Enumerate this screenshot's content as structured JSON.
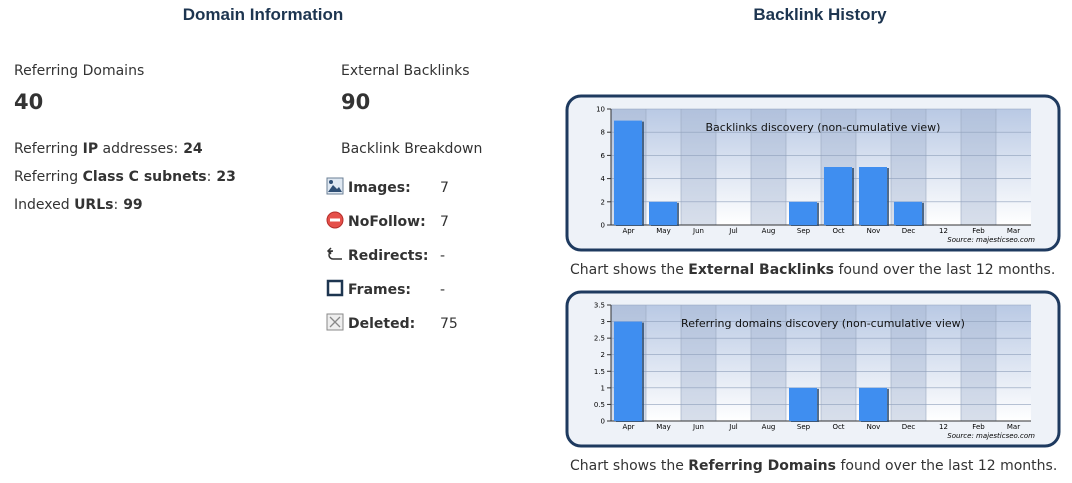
{
  "domain_info": {
    "title": "Domain Information",
    "referring_domains": {
      "label": "Referring Domains",
      "value": 40
    },
    "external_backlinks": {
      "label": "External Backlinks",
      "value": 90
    },
    "stats": [
      {
        "prefix": "Referring ",
        "bold": "IP",
        "suffix": " addresses:",
        "value": 24
      },
      {
        "prefix": "Referring ",
        "bold": "Class C subnets",
        "suffix": ":",
        "value": 23
      },
      {
        "prefix": "Indexed ",
        "bold": "URLs",
        "suffix": ":",
        "value": 99
      }
    ],
    "breakdown": {
      "title": "Backlink Breakdown",
      "items": [
        {
          "label": "Images:",
          "value": 7
        },
        {
          "label": "NoFollow:",
          "value": 7
        },
        {
          "label": "Redirects:",
          "value": "-"
        },
        {
          "label": "Frames:",
          "value": "-"
        },
        {
          "label": "Deleted:",
          "value": 75
        }
      ]
    }
  },
  "backlink_history": {
    "title": "Backlink History",
    "charts": [
      {
        "type": "bar",
        "title": "Backlinks discovery (non-cumulative view)",
        "source": "Source: majesticseo.com",
        "categories": [
          "Apr",
          "May",
          "Jun",
          "Jul",
          "Aug",
          "Sep",
          "Oct",
          "Nov",
          "Dec",
          "12",
          "Feb",
          "Mar"
        ],
        "values": [
          9,
          2,
          0,
          0,
          0,
          2,
          5,
          5,
          2,
          0,
          0,
          0
        ],
        "color": "#3f8ef0",
        "ylim": [
          0,
          10
        ],
        "yticks": [
          0,
          2,
          4,
          6,
          8,
          10
        ],
        "caption": {
          "prefix": "Chart shows the ",
          "bold": "External Backlinks",
          "suffix": " found over the last 12 months."
        }
      },
      {
        "type": "bar",
        "title": "Referring domains discovery (non-cumulative view)",
        "source": "Source: majesticseo.com",
        "categories": [
          "Apr",
          "May",
          "Jun",
          "Jul",
          "Aug",
          "Sep",
          "Oct",
          "Nov",
          "Dec",
          "12",
          "Feb",
          "Mar"
        ],
        "values": [
          3,
          0,
          0,
          0,
          0,
          1,
          0,
          1,
          0,
          0,
          0,
          0
        ],
        "color": "#3f8ef0",
        "ylim": [
          0,
          3.5
        ],
        "yticks": [
          0,
          0.5,
          1,
          1.5,
          2,
          2.5,
          3,
          3.5
        ],
        "caption": {
          "prefix": "Chart shows the ",
          "bold": "Referring Domains",
          "suffix": " found over the last 12 months."
        }
      }
    ]
  }
}
